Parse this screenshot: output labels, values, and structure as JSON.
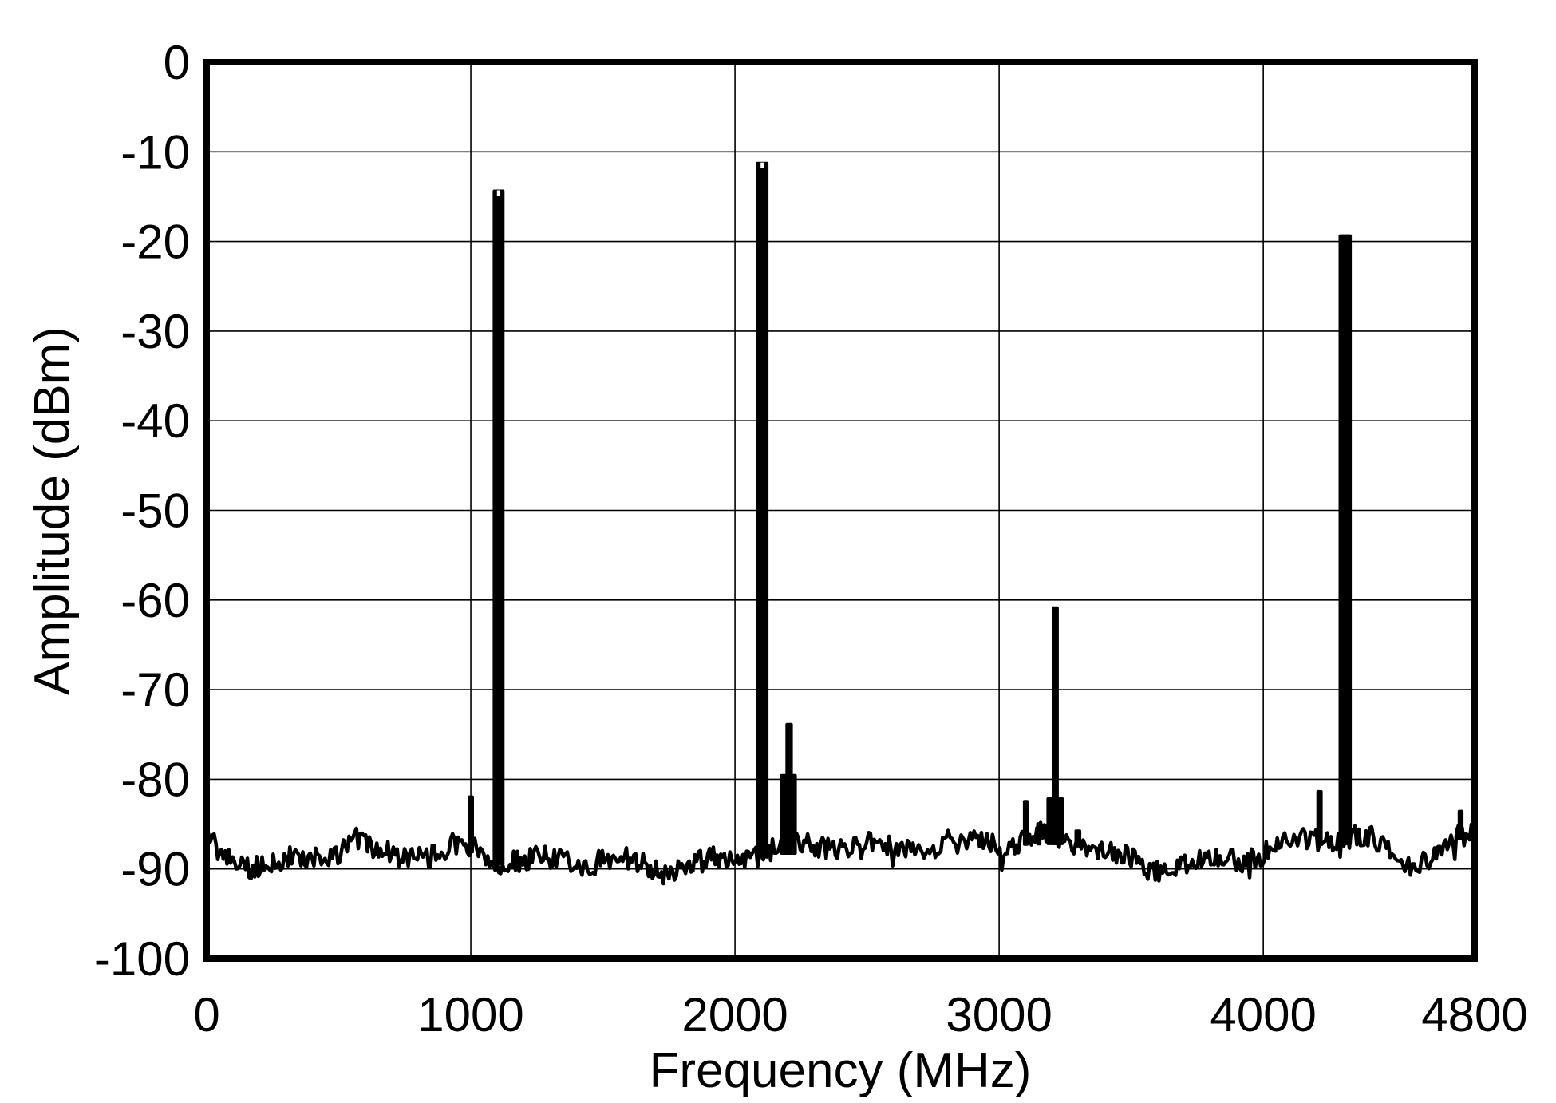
{
  "figure": {
    "background_color": "#ffffff",
    "foreground_color": "#000000",
    "grid_color": "#000000"
  },
  "chart_data": {
    "type": "line",
    "title": "",
    "xlabel": "Frequency (MHz)",
    "ylabel": "Amplitude (dBm)",
    "xlim": [
      0,
      4800
    ],
    "ylim": [
      -100,
      0
    ],
    "x_ticks": [
      0,
      1000,
      2000,
      3000,
      4000,
      4800
    ],
    "y_ticks": [
      0,
      -10,
      -20,
      -30,
      -40,
      -50,
      -60,
      -70,
      -80,
      -90,
      -100
    ],
    "x_gridlines": [
      1000,
      2000,
      3000,
      4000
    ],
    "y_gridlines": [
      -10,
      -20,
      -30,
      -40,
      -50,
      -60,
      -70,
      -80,
      -90
    ],
    "grid": true,
    "legend": false,
    "line_color": "#000000",
    "noise_jitter_db": 1.5,
    "noise_envelope": [
      [
        0,
        -87.0
      ],
      [
        40,
        -88.6
      ],
      [
        90,
        -89.5
      ],
      [
        160,
        -89.8
      ],
      [
        260,
        -89.6
      ],
      [
        360,
        -89.3
      ],
      [
        440,
        -88.7
      ],
      [
        500,
        -87.5
      ],
      [
        548,
        -85.8
      ],
      [
        610,
        -87.3
      ],
      [
        700,
        -88.2
      ],
      [
        800,
        -88.0
      ],
      [
        900,
        -87.8
      ],
      [
        970,
        -87.4
      ],
      [
        1040,
        -88.4
      ],
      [
        1130,
        -89.4
      ],
      [
        1260,
        -89.6
      ],
      [
        1400,
        -89.4
      ],
      [
        1530,
        -88.7
      ],
      [
        1620,
        -89.1
      ],
      [
        1720,
        -89.5
      ],
      [
        1820,
        -89.4
      ],
      [
        1920,
        -89.1
      ],
      [
        2020,
        -88.8
      ],
      [
        2120,
        -88.3
      ],
      [
        2220,
        -87.9
      ],
      [
        2300,
        -87.6
      ],
      [
        2500,
        -87.4
      ],
      [
        2700,
        -87.1
      ],
      [
        2900,
        -86.6
      ],
      [
        2985,
        -86.5
      ],
      [
        3015,
        -89.5
      ],
      [
        3045,
        -87.6
      ],
      [
        3090,
        -87.0
      ],
      [
        3170,
        -86.9
      ],
      [
        3260,
        -86.9
      ],
      [
        3330,
        -87.4
      ],
      [
        3430,
        -88.6
      ],
      [
        3530,
        -89.6
      ],
      [
        3610,
        -89.6
      ],
      [
        3710,
        -89.2
      ],
      [
        3810,
        -88.8
      ],
      [
        3910,
        -88.4
      ],
      [
        4010,
        -87.9
      ],
      [
        4110,
        -87.2
      ],
      [
        4210,
        -86.9
      ],
      [
        4330,
        -86.9
      ],
      [
        4410,
        -87.4
      ],
      [
        4490,
        -88.8
      ],
      [
        4560,
        -89.1
      ],
      [
        4630,
        -88.2
      ],
      [
        4700,
        -87.0
      ],
      [
        4760,
        -86.2
      ],
      [
        4800,
        -85.9
      ]
    ],
    "peaks": [
      {
        "freq_mhz": 1000,
        "amplitude_dbm": -81.8,
        "width_mhz": 24,
        "kind": "spur",
        "notch": false
      },
      {
        "freq_mhz": 1105,
        "amplitude_dbm": -14.2,
        "width_mhz": 45,
        "kind": "signal",
        "notch": true
      },
      {
        "freq_mhz": 2103,
        "amplitude_dbm": -11.1,
        "width_mhz": 48,
        "kind": "signal",
        "notch": true
      },
      {
        "freq_mhz": 2202,
        "amplitude_dbm": -79.4,
        "width_mhz": 64,
        "kind": "pedestal",
        "notch": false
      },
      {
        "freq_mhz": 2205,
        "amplitude_dbm": -73.7,
        "width_mhz": 28,
        "kind": "spur",
        "notch": false
      },
      {
        "freq_mhz": 3101,
        "amplitude_dbm": -82.3,
        "width_mhz": 22,
        "kind": "spur",
        "notch": false
      },
      {
        "freq_mhz": 3150,
        "amplitude_dbm": -84.8,
        "width_mhz": 20,
        "kind": "spur",
        "notch": false
      },
      {
        "freq_mhz": 3212,
        "amplitude_dbm": -82.0,
        "width_mhz": 66,
        "kind": "pedestal",
        "notch": false
      },
      {
        "freq_mhz": 3213,
        "amplitude_dbm": -60.7,
        "width_mhz": 26,
        "kind": "signal",
        "notch": false
      },
      {
        "freq_mhz": 3298,
        "amplitude_dbm": -85.6,
        "width_mhz": 26,
        "kind": "spur",
        "notch": false
      },
      {
        "freq_mhz": 4213,
        "amplitude_dbm": -81.2,
        "width_mhz": 24,
        "kind": "spur",
        "notch": false
      },
      {
        "freq_mhz": 4310,
        "amplitude_dbm": -19.2,
        "width_mhz": 50,
        "kind": "signal",
        "notch": false
      },
      {
        "freq_mhz": 4747,
        "amplitude_dbm": -83.4,
        "width_mhz": 22,
        "kind": "spur",
        "notch": false
      }
    ]
  }
}
